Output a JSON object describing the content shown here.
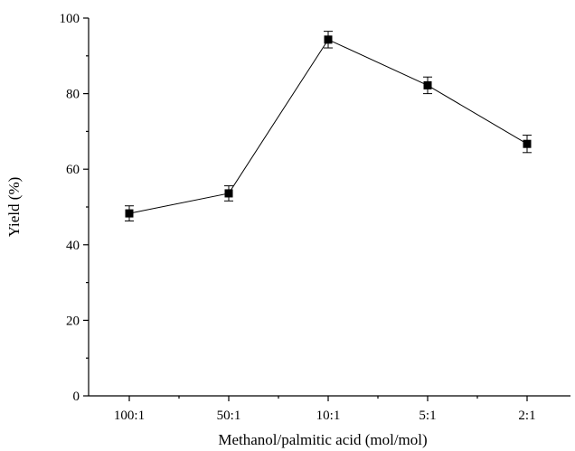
{
  "chart_data": {
    "type": "line",
    "title": "",
    "xlabel": "Methanol/palmitic acid (mol/mol)",
    "ylabel": "Yield  (%)",
    "categories": [
      "100:1",
      "50:1",
      "10:1",
      "5:1",
      "2:1"
    ],
    "series": [
      {
        "values": [
          48.3,
          53.6,
          94.3,
          82.2,
          66.7
        ],
        "error": [
          2.0,
          2.0,
          2.2,
          2.2,
          2.3
        ],
        "color": "#000000",
        "marker": "square"
      }
    ],
    "ylim": [
      0,
      100
    ],
    "yticks": [
      0,
      20,
      40,
      60,
      80,
      100
    ],
    "grid": false,
    "legend": "none"
  }
}
